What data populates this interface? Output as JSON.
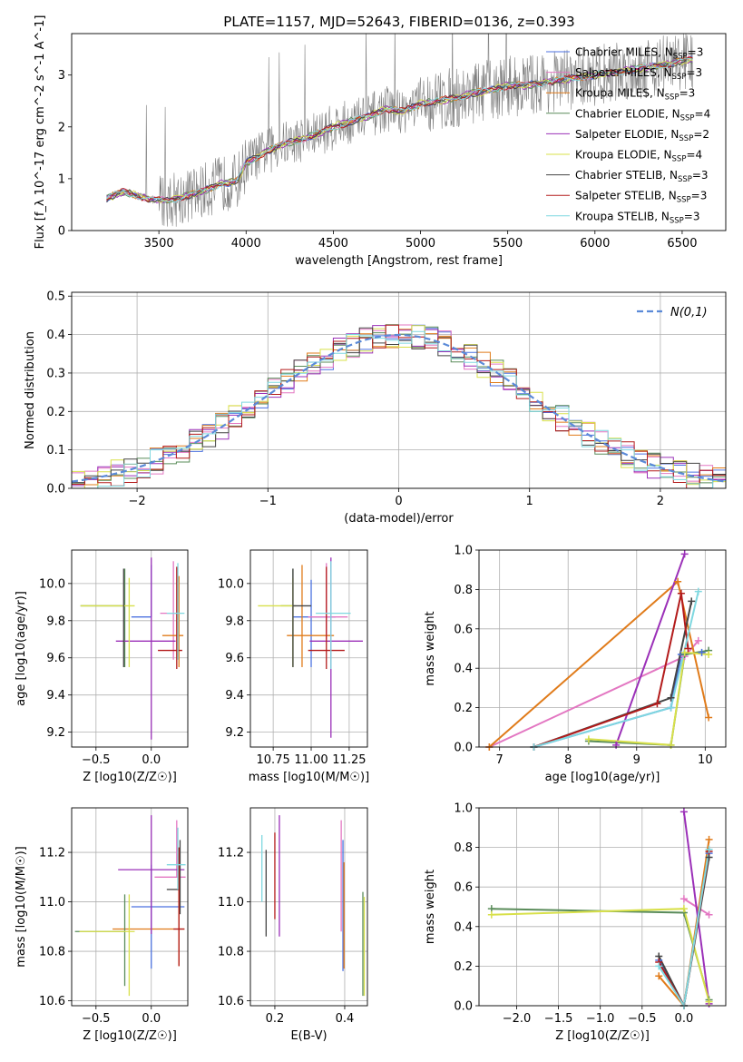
{
  "figure_title": "PLATE=1157, MJD=52643, FIBERID=0136, z=0.393",
  "models": [
    {
      "name": "Chabrier MILES",
      "nssp": "3",
      "color": "#4c72e0"
    },
    {
      "name": "Salpeter MILES",
      "nssp": "3",
      "color": "#e377c2"
    },
    {
      "name": "Kroupa MILES",
      "nssp": "3",
      "color": "#e07b1a"
    },
    {
      "name": "Chabrier ELODIE",
      "nssp": "4",
      "color": "#5a8c5a"
    },
    {
      "name": "Salpeter ELODIE",
      "nssp": "2",
      "color": "#9b30b8"
    },
    {
      "name": "Kroupa ELODIE",
      "nssp": "4",
      "color": "#d8e04a"
    },
    {
      "name": "Chabrier STELIB",
      "nssp": "3",
      "color": "#444444"
    },
    {
      "name": "Salpeter STELIB",
      "nssp": "3",
      "color": "#b31b1b"
    },
    {
      "name": "Kroupa STELIB",
      "nssp": "3",
      "color": "#7fd8e0"
    }
  ],
  "data_color": "#808080",
  "chart_data": [
    {
      "id": "spectrum",
      "type": "line",
      "xlabel": "wavelength [Angstrom, rest frame]",
      "ylabel": "Flux [f_λ 10^-17 erg cm^-2 s^-1 A^-1]",
      "xlim": [
        3000,
        6750
      ],
      "ylim": [
        0,
        3.8
      ],
      "xticks": [
        3500,
        4000,
        4500,
        5000,
        5500,
        6000,
        6500
      ],
      "yticks": [
        0,
        1,
        2,
        3
      ],
      "grid": false,
      "legend": "top-right",
      "continuum": {
        "x": [
          3200,
          3300,
          3450,
          3550,
          3650,
          3750,
          3850,
          3950,
          4000,
          4100,
          4200,
          4300,
          4400,
          4500,
          4600,
          4700,
          4800,
          4900,
          5000,
          5100,
          5200,
          5300,
          5400,
          5500,
          5600,
          5700,
          5800,
          5900,
          6000,
          6100,
          6200,
          6300,
          6400,
          6550
        ],
        "y": [
          0.62,
          0.75,
          0.6,
          0.58,
          0.66,
          0.75,
          0.9,
          0.95,
          1.3,
          1.5,
          1.65,
          1.75,
          1.85,
          2.0,
          2.1,
          2.2,
          2.35,
          2.3,
          2.45,
          2.5,
          2.55,
          2.65,
          2.7,
          2.8,
          2.8,
          2.85,
          2.9,
          2.95,
          3.0,
          3.05,
          3.1,
          3.15,
          3.2,
          3.3
        ]
      }
    },
    {
      "id": "residuals",
      "type": "bar",
      "xlabel": "(data-model)/error",
      "ylabel": "Normed distribution",
      "xlim": [
        -2.5,
        2.5
      ],
      "ylim": [
        0,
        0.51
      ],
      "xticks": [
        -2,
        -1,
        0,
        1,
        2
      ],
      "yticks": [
        0.0,
        0.1,
        0.2,
        0.3,
        0.4,
        0.5
      ],
      "grid": true,
      "legend": "top-right",
      "legend_label": "N(0,1)",
      "reference_curve": "gaussian N(0,1)"
    },
    {
      "id": "age-vs-Z",
      "type": "scatter",
      "xlabel": "Z [log10(Z/Z☉)]",
      "ylabel": "age [log10(age/yr)]",
      "xlim": [
        -0.72,
        0.33
      ],
      "ylim": [
        9.12,
        10.18
      ],
      "xticks": [
        -0.5,
        0.0
      ],
      "yticks": [
        9.2,
        9.4,
        9.6,
        9.8,
        10.0
      ],
      "grid": true,
      "points": [
        {
          "m": 0,
          "x": 0.0,
          "y": 9.82,
          "xerr": [
            0.18,
            0.0
          ],
          "yerr": [
            0.0,
            0.28
          ]
        },
        {
          "m": 1,
          "x": 0.2,
          "y": 9.84,
          "xerr": [
            0.12,
            0.05
          ],
          "yerr": [
            0.25,
            0.28
          ]
        },
        {
          "m": 2,
          "x": 0.25,
          "y": 9.72,
          "xerr": [
            0.15,
            0.04
          ],
          "yerr": [
            0.17,
            0.32
          ]
        },
        {
          "m": 3,
          "x": -0.24,
          "y": 9.88,
          "xerr": [
            0.4,
            0.0
          ],
          "yerr": [
            0.33,
            0.2
          ]
        },
        {
          "m": 4,
          "x": 0.0,
          "y": 9.69,
          "xerr": [
            0.32,
            0.22
          ],
          "yerr": [
            0.53,
            0.45
          ]
        },
        {
          "m": 5,
          "x": -0.2,
          "y": 9.88,
          "xerr": [
            0.44,
            0.05
          ],
          "yerr": [
            0.33,
            0.15
          ]
        },
        {
          "m": 6,
          "x": -0.25,
          "y": 9.88,
          "xerr": [
            0.0,
            0.0
          ],
          "yerr": [
            0.33,
            0.2
          ]
        },
        {
          "m": 7,
          "x": 0.23,
          "y": 9.64,
          "xerr": [
            0.17,
            0.05
          ],
          "yerr": [
            0.1,
            0.45
          ]
        },
        {
          "m": 8,
          "x": 0.24,
          "y": 9.84,
          "xerr": [
            0.1,
            0.06
          ],
          "yerr": [
            0.25,
            0.27
          ]
        }
      ]
    },
    {
      "id": "age-vs-mass",
      "type": "scatter",
      "xlabel": "mass [log10(M/M☉)]",
      "ylabel": "",
      "xlim": [
        10.6,
        11.37
      ],
      "ylim": [
        9.12,
        10.18
      ],
      "xticks": [
        10.75,
        11.0,
        11.25
      ],
      "yticks": [
        9.2,
        9.4,
        9.6,
        9.8,
        10.0
      ],
      "grid": true,
      "points": [
        {
          "m": 0,
          "x": 11.0,
          "y": 9.82,
          "xerr": [
            0.12,
            0.16
          ],
          "yerr": [
            0.27,
            0.2
          ]
        },
        {
          "m": 1,
          "x": 11.1,
          "y": 9.82,
          "xerr": [
            0.12,
            0.14
          ],
          "yerr": [
            0.12,
            0.29
          ]
        },
        {
          "m": 2,
          "x": 10.94,
          "y": 9.72,
          "xerr": [
            0.1,
            0.21
          ],
          "yerr": [
            0.17,
            0.38
          ]
        },
        {
          "m": 3,
          "x": 10.88,
          "y": 9.88,
          "xerr": [
            0.08,
            0.0
          ],
          "yerr": [
            0.33,
            0.2
          ]
        },
        {
          "m": 4,
          "x": 11.13,
          "y": 9.69,
          "xerr": [
            0.14,
            0.21
          ],
          "yerr": [
            0.52,
            0.45
          ]
        },
        {
          "m": 5,
          "x": 10.88,
          "y": 9.88,
          "xerr": [
            0.23,
            0.02
          ],
          "yerr": [
            0.33,
            0.15
          ]
        },
        {
          "m": 6,
          "x": 10.88,
          "y": 9.88,
          "xerr": [
            0.0,
            0.12
          ],
          "yerr": [
            0.33,
            0.2
          ]
        },
        {
          "m": 7,
          "x": 11.1,
          "y": 9.64,
          "xerr": [
            0.12,
            0.12
          ],
          "yerr": [
            0.1,
            0.45
          ]
        },
        {
          "m": 8,
          "x": 11.13,
          "y": 9.84,
          "xerr": [
            0.1,
            0.13
          ],
          "yerr": [
            0.3,
            0.28
          ]
        }
      ]
    },
    {
      "id": "mass-weight-vs-age",
      "type": "line",
      "xlabel": "age [log10(age/yr)]",
      "ylabel": "mass weight",
      "xlim": [
        6.7,
        10.3
      ],
      "ylim": [
        0,
        1
      ],
      "xticks": [
        7,
        8,
        9,
        10
      ],
      "yticks": [
        0.0,
        0.2,
        0.4,
        0.6,
        0.8,
        1.0
      ],
      "grid": true,
      "series": [
        {
          "m": 0,
          "x": [
            7.5,
            9.5,
            9.65,
            9.95
          ],
          "y": [
            0.0,
            0.2,
            0.47,
            0.48
          ]
        },
        {
          "m": 1,
          "x": [
            6.85,
            9.7,
            9.9
          ],
          "y": [
            0.0,
            0.46,
            0.54
          ]
        },
        {
          "m": 2,
          "x": [
            6.85,
            9.6,
            10.05
          ],
          "y": [
            0.0,
            0.84,
            0.15
          ]
        },
        {
          "m": 3,
          "x": [
            8.3,
            9.5,
            9.7,
            10.05
          ],
          "y": [
            0.03,
            0.01,
            0.47,
            0.49
          ]
        },
        {
          "m": 4,
          "x": [
            8.7,
            9.7
          ],
          "y": [
            0.01,
            0.98
          ]
        },
        {
          "m": 5,
          "x": [
            8.3,
            9.5,
            9.7,
            10.05
          ],
          "y": [
            0.04,
            0.01,
            0.48,
            0.47
          ]
        },
        {
          "m": 6,
          "x": [
            7.5,
            9.5,
            9.8
          ],
          "y": [
            0.0,
            0.25,
            0.74
          ]
        },
        {
          "m": 7,
          "x": [
            7.5,
            9.3,
            9.65,
            9.75
          ],
          "y": [
            0.0,
            0.22,
            0.78,
            0.5
          ]
        },
        {
          "m": 8,
          "x": [
            7.5,
            9.5,
            9.9
          ],
          "y": [
            0.0,
            0.2,
            0.79
          ]
        }
      ]
    },
    {
      "id": "mass-vs-Z",
      "type": "scatter",
      "xlabel": "Z [log10(Z/Z☉)]",
      "ylabel": "mass [log10(M/M☉)]",
      "xlim": [
        -0.72,
        0.33
      ],
      "ylim": [
        10.58,
        11.38
      ],
      "xticks": [
        -0.5,
        0.0
      ],
      "yticks": [
        10.6,
        10.8,
        11.0,
        11.2
      ],
      "grid": true,
      "points": [
        {
          "m": 0,
          "x": 0.0,
          "y": 10.98,
          "xerr": [
            0.18,
            0.3
          ],
          "yerr": [
            0.25,
            0.17
          ]
        },
        {
          "m": 1,
          "x": 0.23,
          "y": 11.1,
          "xerr": [
            0.2,
            0.08
          ],
          "yerr": [
            0.0,
            0.23
          ]
        },
        {
          "m": 2,
          "x": 0.25,
          "y": 10.89,
          "xerr": [
            0.6,
            0.05
          ],
          "yerr": [
            0.15,
            0.33
          ]
        },
        {
          "m": 3,
          "x": -0.24,
          "y": 10.88,
          "xerr": [
            0.45,
            0.0
          ],
          "yerr": [
            0.22,
            0.15
          ]
        },
        {
          "m": 4,
          "x": 0.0,
          "y": 11.13,
          "xerr": [
            0.3,
            0.3
          ],
          "yerr": [
            0.26,
            0.22
          ]
        },
        {
          "m": 5,
          "x": -0.2,
          "y": 10.88,
          "xerr": [
            0.45,
            0.05
          ],
          "yerr": [
            0.26,
            0.15
          ]
        },
        {
          "m": 6,
          "x": 0.26,
          "y": 11.05,
          "xerr": [
            0.12,
            0.0
          ],
          "yerr": [
            0.1,
            0.2
          ]
        },
        {
          "m": 7,
          "x": 0.25,
          "y": 10.89,
          "xerr": [
            0.05,
            0.05
          ],
          "yerr": [
            0.15,
            0.33
          ]
        },
        {
          "m": 8,
          "x": 0.24,
          "y": 11.15,
          "xerr": [
            0.1,
            0.07
          ],
          "yerr": [
            0.1,
            0.15
          ]
        }
      ]
    },
    {
      "id": "mass-vs-EBV",
      "type": "scatter",
      "xlabel": "E(B-V)",
      "ylabel": "",
      "xlim": [
        0.13,
        0.465
      ],
      "ylim": [
        10.58,
        11.38
      ],
      "xticks": [
        0.2,
        0.4
      ],
      "yticks": [
        10.6,
        10.8,
        11.0,
        11.2
      ],
      "grid": true,
      "points": [
        {
          "m": 8,
          "x": 0.163,
          "y": 11.12,
          "xerr": [
            0,
            0
          ],
          "yerr": [
            0.12,
            0.15
          ]
        },
        {
          "m": 6,
          "x": 0.175,
          "y": 11.03,
          "xerr": [
            0,
            0
          ],
          "yerr": [
            0.17,
            0.18
          ]
        },
        {
          "m": 7,
          "x": 0.2,
          "y": 11.08,
          "xerr": [
            0,
            0
          ],
          "yerr": [
            0.15,
            0.2
          ]
        },
        {
          "m": 4,
          "x": 0.213,
          "y": 11.1,
          "xerr": [
            0,
            0
          ],
          "yerr": [
            0.24,
            0.25
          ]
        },
        {
          "m": 1,
          "x": 0.39,
          "y": 11.1,
          "xerr": [
            0,
            0
          ],
          "yerr": [
            0.22,
            0.23
          ]
        },
        {
          "m": 0,
          "x": 0.395,
          "y": 11.0,
          "xerr": [
            0,
            0
          ],
          "yerr": [
            0.28,
            0.25
          ]
        },
        {
          "m": 2,
          "x": 0.398,
          "y": 10.96,
          "xerr": [
            0,
            0
          ],
          "yerr": [
            0.23,
            0.2
          ]
        },
        {
          "m": 3,
          "x": 0.452,
          "y": 10.84,
          "xerr": [
            0,
            0
          ],
          "yerr": [
            0.22,
            0.2
          ]
        },
        {
          "m": 5,
          "x": 0.456,
          "y": 10.84,
          "xerr": [
            0,
            0
          ],
          "yerr": [
            0.22,
            0.18
          ]
        }
      ]
    },
    {
      "id": "mass-weight-vs-Z",
      "type": "line",
      "xlabel": "Z [log10(Z/Z☉)]",
      "ylabel": "mass weight",
      "xlim": [
        -2.45,
        0.5
      ],
      "ylim": [
        0,
        1
      ],
      "xticks": [
        -2.0,
        -1.5,
        -1.0,
        -0.5,
        0.0
      ],
      "yticks": [
        0.0,
        0.2,
        0.4,
        0.6,
        0.8,
        1.0
      ],
      "grid": true,
      "series": [
        {
          "m": 0,
          "x": [
            -0.3,
            0.0,
            0.3
          ],
          "y": [
            0.23,
            0.0,
            0.77
          ]
        },
        {
          "m": 1,
          "x": [
            0.0,
            0.3
          ],
          "y": [
            0.54,
            0.46
          ]
        },
        {
          "m": 2,
          "x": [
            -0.3,
            0.0,
            0.3
          ],
          "y": [
            0.15,
            0.0,
            0.84
          ]
        },
        {
          "m": 3,
          "x": [
            -2.3,
            0.0,
            0.3
          ],
          "y": [
            0.49,
            0.47,
            0.03
          ]
        },
        {
          "m": 4,
          "x": [
            0.0,
            0.3
          ],
          "y": [
            0.98,
            0.01
          ]
        },
        {
          "m": 5,
          "x": [
            -2.3,
            0.0,
            0.3
          ],
          "y": [
            0.46,
            0.49,
            0.02
          ]
        },
        {
          "m": 6,
          "x": [
            -0.3,
            0.0,
            0.3
          ],
          "y": [
            0.25,
            0.0,
            0.75
          ]
        },
        {
          "m": 7,
          "x": [
            -0.3,
            0.0,
            0.3
          ],
          "y": [
            0.22,
            0.0,
            0.78
          ]
        },
        {
          "m": 8,
          "x": [
            -0.3,
            0.0,
            0.3
          ],
          "y": [
            0.2,
            0.0,
            0.79
          ]
        }
      ]
    }
  ]
}
